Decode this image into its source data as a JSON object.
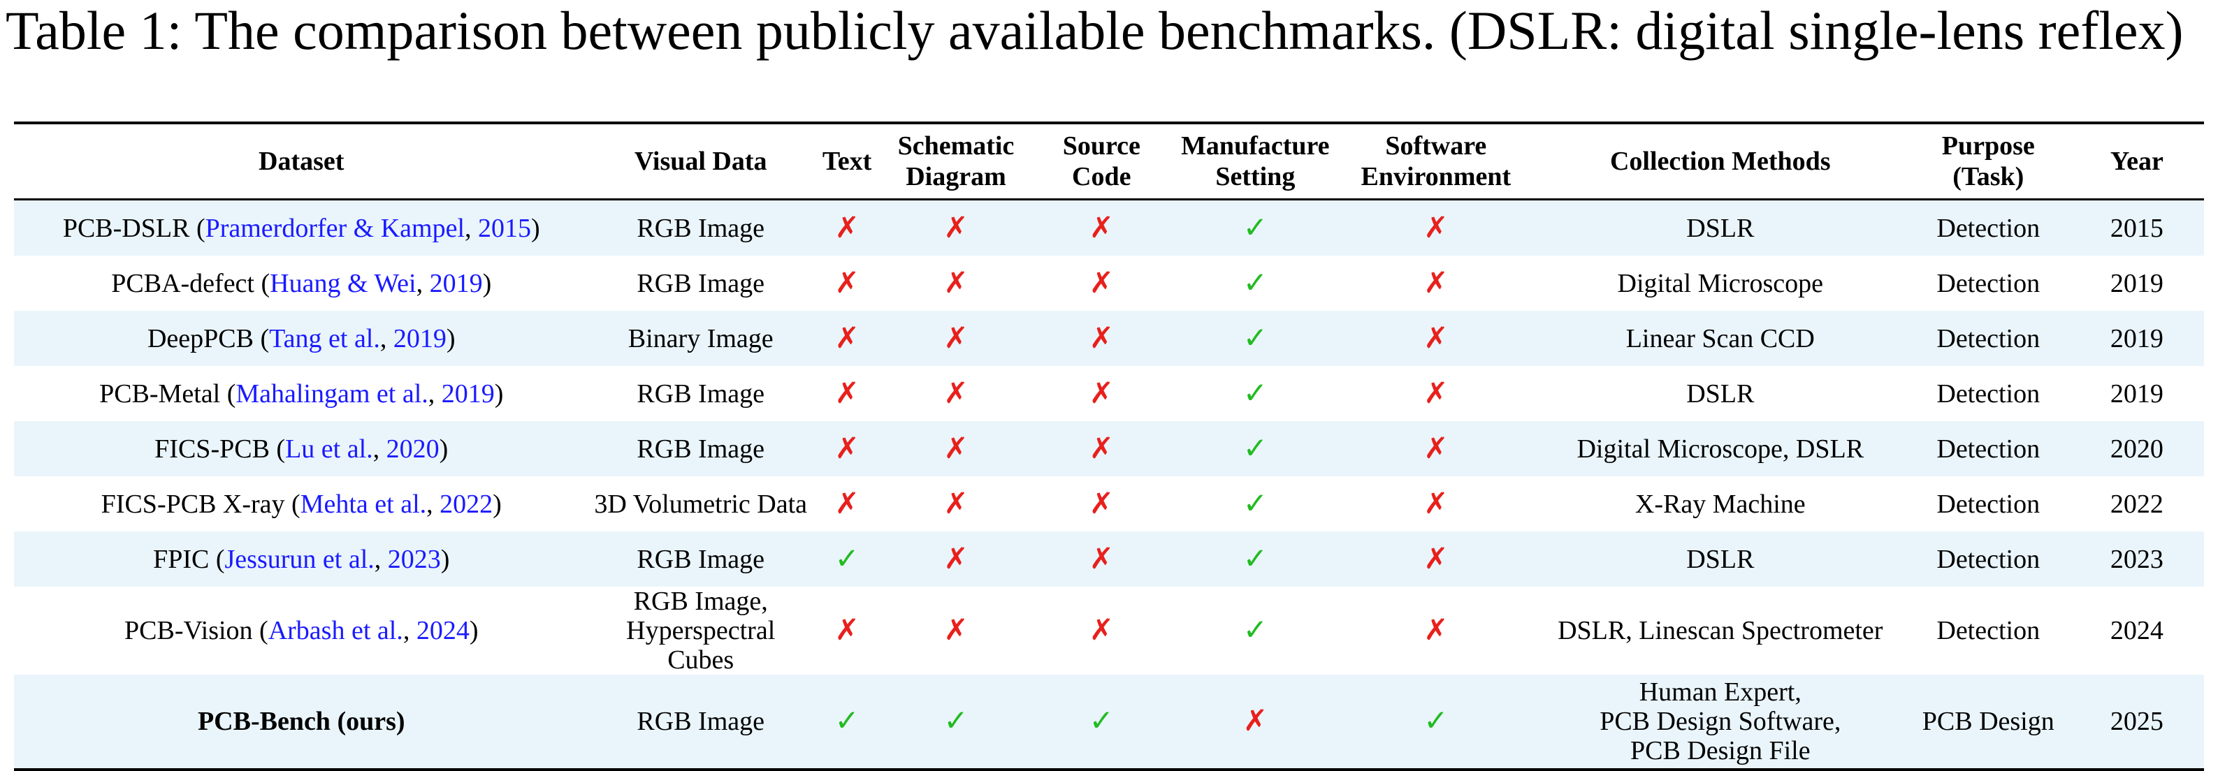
{
  "caption": "Table 1: The comparison between publicly available benchmarks. (DSLR: digital single-lens reflex)",
  "colors": {
    "cite": "#1a1aff",
    "check": "#22bb22",
    "cross": "#e8201c",
    "row_shade": "#eaf5fb"
  },
  "symbols": {
    "yes": "✓",
    "no": "✗"
  },
  "headers": {
    "dataset": "Dataset",
    "visual": "Visual Data",
    "text": "Text",
    "schematic_1": "Schematic",
    "schematic_2": "Diagram",
    "source_1": "Source",
    "source_2": "Code",
    "manufacture_1": "Manufacture",
    "manufacture_2": "Setting",
    "software_1": "Software",
    "software_2": "Environment",
    "collection": "Collection Methods",
    "purpose_1": "Purpose",
    "purpose_2": "(Task)",
    "year": "Year"
  },
  "rows": [
    {
      "name": "PCB-DSLR",
      "cite_authors": "Pramerdorfer & Kampel",
      "cite_year": "2015",
      "visual": "RGB Image",
      "text": false,
      "schematic": false,
      "source": false,
      "manufacture": true,
      "software": false,
      "collection": "DSLR",
      "purpose": "Detection",
      "year": "2015"
    },
    {
      "name": "PCBA-defect",
      "cite_authors": "Huang & Wei",
      "cite_year": "2019",
      "visual": "RGB Image",
      "text": false,
      "schematic": false,
      "source": false,
      "manufacture": true,
      "software": false,
      "collection": "Digital Microscope",
      "purpose": "Detection",
      "year": "2019"
    },
    {
      "name": "DeepPCB",
      "cite_authors": "Tang et al.",
      "cite_year": "2019",
      "visual": "Binary Image",
      "text": false,
      "schematic": false,
      "source": false,
      "manufacture": true,
      "software": false,
      "collection": "Linear Scan CCD",
      "purpose": "Detection",
      "year": "2019"
    },
    {
      "name": "PCB-Metal",
      "cite_authors": "Mahalingam et al.",
      "cite_year": "2019",
      "visual": "RGB Image",
      "text": false,
      "schematic": false,
      "source": false,
      "manufacture": true,
      "software": false,
      "collection": "DSLR",
      "purpose": "Detection",
      "year": "2019"
    },
    {
      "name": "FICS-PCB",
      "cite_authors": "Lu et al.",
      "cite_year": "2020",
      "visual": "RGB Image",
      "text": false,
      "schematic": false,
      "source": false,
      "manufacture": true,
      "software": false,
      "collection": "Digital Microscope, DSLR",
      "purpose": "Detection",
      "year": "2020"
    },
    {
      "name": "FICS-PCB X-ray",
      "cite_authors": "Mehta et al.",
      "cite_year": "2022",
      "visual": "3D Volumetric Data",
      "text": false,
      "schematic": false,
      "source": false,
      "manufacture": true,
      "software": false,
      "collection": "X-Ray Machine",
      "purpose": "Detection",
      "year": "2022"
    },
    {
      "name": "FPIC",
      "cite_authors": "Jessurun et al.",
      "cite_year": "2023",
      "visual": "RGB Image",
      "text": true,
      "schematic": false,
      "source": false,
      "manufacture": true,
      "software": false,
      "collection": "DSLR",
      "purpose": "Detection",
      "year": "2023"
    },
    {
      "name": "PCB-Vision",
      "cite_authors": "Arbash et al.",
      "cite_year": "2024",
      "visual": "RGB Image,\nHyperspectral Cubes",
      "text": false,
      "schematic": false,
      "source": false,
      "manufacture": true,
      "software": false,
      "collection": "DSLR, Linescan Spectrometer",
      "purpose": "Detection",
      "year": "2024"
    }
  ],
  "ours": {
    "name": "PCB-Bench (ours)",
    "visual": "RGB Image",
    "text": true,
    "schematic": true,
    "source": true,
    "manufacture": false,
    "software": true,
    "collection": "Human Expert,\nPCB Design Software,\nPCB Design File",
    "purpose": "PCB Design",
    "year": "2025"
  }
}
